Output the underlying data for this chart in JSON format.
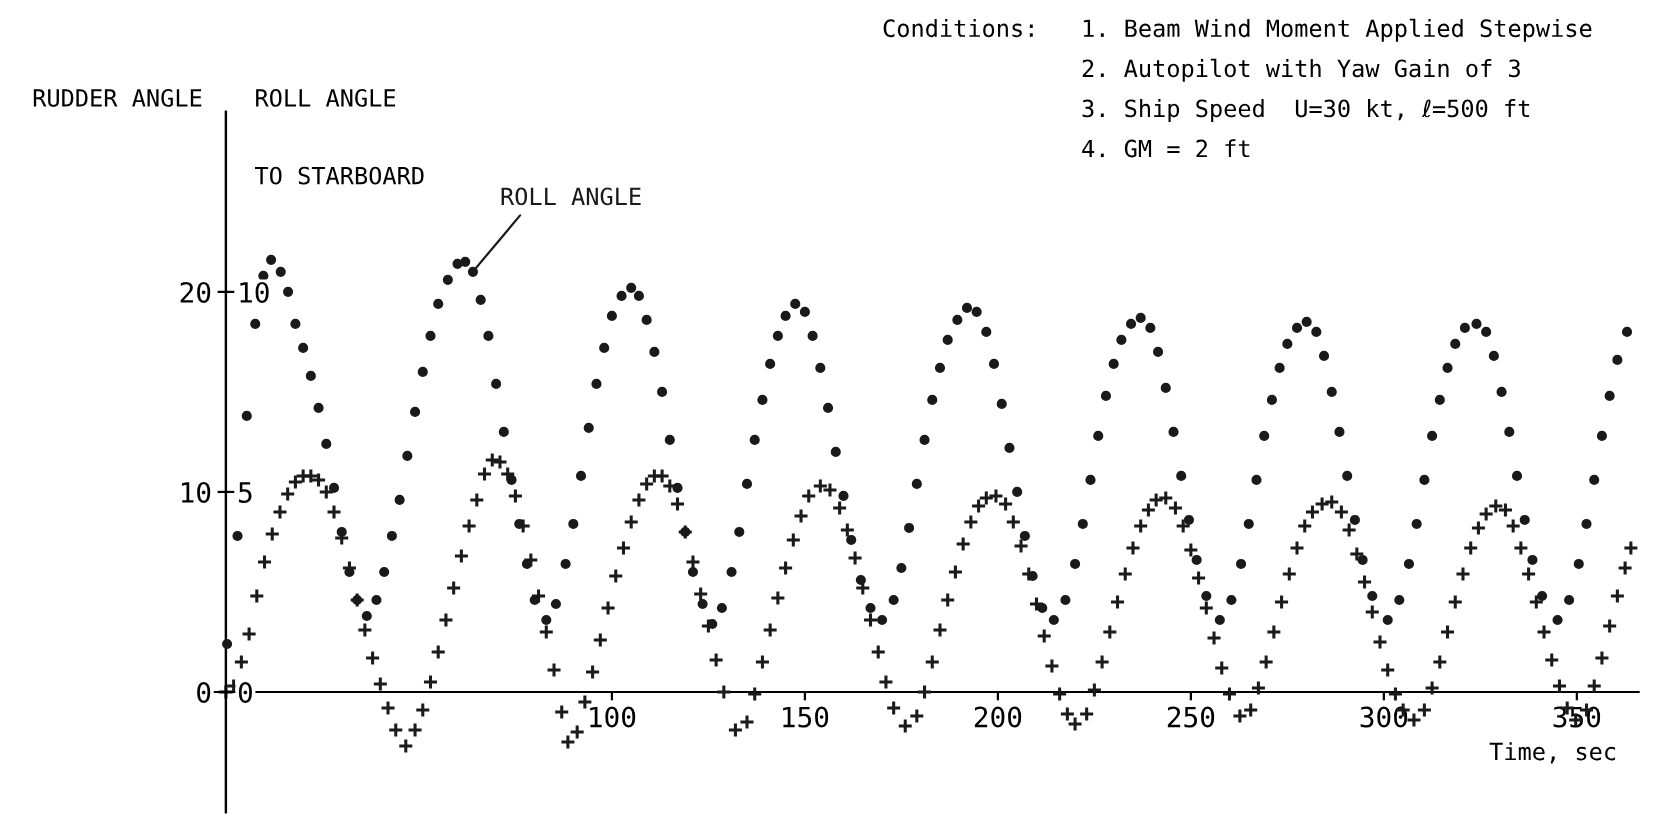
{
  "chart_data": {
    "type": "scatter",
    "annotations": [
      "Conditions:",
      "1. Beam Wind Moment Applied Stepwise",
      "2. Autopilot with Yaw Gain of 3",
      "3. Ship Speed  U=30 kt, ℓ=500 ft",
      "4. GM = 2 ft",
      "TO STARBOARD"
    ],
    "xlabel": "Time, sec",
    "ylabel": "RUDDER ANGLE",
    "y2label": "ROLL ANGLE",
    "xlim": [
      -6,
      366
    ],
    "xticks": [
      100,
      150,
      200,
      250,
      300,
      350
    ],
    "ylim": [
      -6,
      29
    ],
    "yticks": [
      0,
      10,
      20
    ],
    "y2lim": [
      -3,
      14.5
    ],
    "y2ticks": [
      0,
      5,
      10
    ],
    "series": [
      {
        "name": "ROLL ANGLE",
        "axis": "y2",
        "marker": "circle",
        "color": "#1a1a1a",
        "x": [
          0.3,
          3,
          5.4,
          7.6,
          9.7,
          11.7,
          14.2,
          16.1,
          18,
          20,
          22,
          24,
          26,
          28,
          30,
          32,
          34,
          36.5,
          39,
          41,
          43,
          45,
          47,
          49,
          51,
          53,
          55,
          57.5,
          60,
          62,
          64,
          66,
          68,
          70,
          72,
          74,
          76,
          78,
          80,
          83,
          85.5,
          88,
          90,
          92,
          94,
          96,
          98,
          100,
          102.5,
          105,
          107,
          109,
          111,
          113,
          115,
          117,
          119,
          121,
          123.5,
          126,
          128.5,
          131,
          133,
          135,
          137,
          139,
          141,
          143,
          145,
          147.5,
          150,
          152,
          154,
          156,
          158,
          160,
          162,
          164.5,
          167,
          170,
          173,
          175,
          177,
          179,
          181,
          183,
          185,
          187,
          189.5,
          192,
          194.5,
          197,
          199,
          201,
          203,
          205,
          207,
          209,
          211.5,
          214.5,
          217.5,
          220,
          222,
          224,
          226,
          228,
          230,
          232,
          234.5,
          237,
          239.5,
          241.5,
          243.5,
          245.5,
          247.5,
          249.5,
          251.5,
          254,
          257.5,
          260.5,
          263,
          265,
          267,
          269,
          271,
          273,
          275,
          277.5,
          280,
          282.5,
          284.5,
          286.5,
          288.5,
          290.5,
          292.5,
          294.5,
          297,
          301,
          304,
          306.5,
          308.5,
          310.5,
          312.5,
          314.5,
          316.5,
          318.5,
          321,
          324,
          326.5,
          328.5,
          330.5,
          332.5,
          334.5,
          336.5,
          338.5,
          341,
          345,
          348,
          350.5,
          352.5,
          354.5,
          356.5,
          358.5,
          360.5,
          363
        ],
        "values": [
          1.2,
          3.9,
          6.9,
          9.2,
          10.4,
          10.8,
          10.5,
          10.0,
          9.2,
          8.6,
          7.9,
          7.1,
          6.2,
          5.1,
          4.0,
          3.0,
          2.3,
          1.9,
          2.3,
          3.0,
          3.9,
          4.8,
          5.9,
          7.0,
          8.0,
          8.9,
          9.7,
          10.3,
          10.7,
          10.75,
          10.5,
          9.8,
          8.9,
          7.7,
          6.5,
          5.3,
          4.2,
          3.2,
          2.3,
          1.8,
          2.2,
          3.2,
          4.2,
          5.4,
          6.6,
          7.7,
          8.6,
          9.4,
          9.9,
          10.1,
          9.9,
          9.3,
          8.5,
          7.5,
          6.3,
          5.1,
          4.0,
          3.0,
          2.2,
          1.7,
          2.1,
          3.0,
          4.0,
          5.2,
          6.3,
          7.3,
          8.2,
          8.9,
          9.4,
          9.7,
          9.5,
          8.9,
          8.1,
          7.1,
          6.0,
          4.9,
          3.8,
          2.8,
          2.1,
          1.8,
          2.3,
          3.1,
          4.1,
          5.2,
          6.3,
          7.3,
          8.1,
          8.8,
          9.3,
          9.6,
          9.5,
          9.0,
          8.2,
          7.2,
          6.1,
          5.0,
          3.9,
          2.9,
          2.1,
          1.8,
          2.3,
          3.2,
          4.2,
          5.3,
          6.4,
          7.4,
          8.2,
          8.8,
          9.2,
          9.35,
          9.1,
          8.5,
          7.6,
          6.5,
          5.4,
          4.3,
          3.3,
          2.4,
          1.8,
          2.3,
          3.2,
          4.2,
          5.3,
          6.4,
          7.3,
          8.1,
          8.7,
          9.1,
          9.25,
          9.0,
          8.4,
          7.5,
          6.5,
          5.4,
          4.3,
          3.3,
          2.4,
          1.8,
          2.3,
          3.2,
          4.2,
          5.3,
          6.4,
          7.3,
          8.1,
          8.7,
          9.1,
          9.2,
          9.0,
          8.4,
          7.5,
          6.5,
          5.4,
          4.3,
          3.3,
          2.4,
          1.8,
          2.3,
          3.2,
          4.2,
          5.3,
          6.4,
          7.4,
          8.3,
          9.0
        ]
      },
      {
        "marker": "cross",
        "color": "#1a1a1a",
        "x": [
          0,
          2,
          4,
          6,
          8,
          10,
          12,
          14,
          16,
          18,
          20,
          22,
          24,
          26,
          28,
          30,
          32,
          34,
          36,
          38,
          40,
          42,
          44,
          46.6,
          49,
          51,
          53,
          55,
          57,
          59,
          61,
          63,
          65,
          67,
          69,
          71,
          73,
          75,
          77,
          79,
          81,
          83,
          85,
          87,
          88.6,
          91,
          93,
          95,
          97,
          99,
          101,
          103,
          105,
          107,
          109,
          111,
          113,
          115,
          117,
          119,
          121,
          123,
          125,
          127,
          129,
          132,
          135,
          137,
          139,
          141,
          143,
          145,
          147,
          149,
          151,
          154,
          156.5,
          159,
          161,
          163,
          165,
          167,
          169,
          171,
          173,
          176,
          179,
          181,
          183,
          185,
          187,
          189,
          191,
          193,
          195,
          197,
          199.5,
          202,
          204,
          206,
          208,
          210,
          212,
          214,
          216,
          218,
          220,
          223,
          225,
          227,
          229,
          231,
          233,
          235,
          237,
          239,
          241,
          243.5,
          246,
          248,
          250,
          252,
          254,
          256,
          258,
          260,
          262.7,
          265.5,
          267.5,
          269.5,
          271.5,
          273.5,
          275.5,
          277.5,
          279.5,
          281.5,
          284,
          286.5,
          289,
          291,
          293,
          295,
          297,
          299,
          301,
          303,
          305,
          307.8,
          310.5,
          312.5,
          314.5,
          316.5,
          318.5,
          320.5,
          322.5,
          324.5,
          326.5,
          329,
          331.5,
          333.5,
          335.5,
          337.5,
          339.5,
          341.5,
          343.5,
          345.5,
          347.5,
          349.7,
          352.5,
          354.5,
          356.5,
          358.5,
          360.5,
          362.5,
          364
        ],
        "values": [
          0,
          0.3,
          1.5,
          2.9,
          4.8,
          6.5,
          7.9,
          9.0,
          9.9,
          10.5,
          10.8,
          10.8,
          10.6,
          10.0,
          9.0,
          7.7,
          6.2,
          4.6,
          3.1,
          1.7,
          0.4,
          -0.8,
          -1.9,
          -2.7,
          -1.9,
          -0.9,
          0.5,
          2.0,
          3.6,
          5.2,
          6.8,
          8.3,
          9.6,
          10.9,
          11.6,
          11.5,
          10.9,
          9.8,
          8.3,
          6.6,
          4.8,
          3.0,
          1.1,
          -1.0,
          -2.5,
          -2.0,
          -0.5,
          1.0,
          2.6,
          4.2,
          5.8,
          7.2,
          8.5,
          9.6,
          10.4,
          10.8,
          10.8,
          10.3,
          9.4,
          8.0,
          6.5,
          4.9,
          3.3,
          1.6,
          0.0,
          -1.9,
          -1.5,
          -0.1,
          1.5,
          3.1,
          4.7,
          6.2,
          7.6,
          8.8,
          9.8,
          10.3,
          10.1,
          9.2,
          8.1,
          6.7,
          5.2,
          3.6,
          2.0,
          0.5,
          -0.8,
          -1.7,
          -1.2,
          0.0,
          1.5,
          3.1,
          4.6,
          6.0,
          7.4,
          8.5,
          9.3,
          9.7,
          9.8,
          9.4,
          8.5,
          7.3,
          5.9,
          4.4,
          2.8,
          1.3,
          -0.1,
          -1.1,
          -1.6,
          -1.1,
          0.1,
          1.5,
          3.0,
          4.5,
          5.9,
          7.2,
          8.3,
          9.1,
          9.6,
          9.7,
          9.2,
          8.3,
          7.1,
          5.7,
          4.2,
          2.7,
          1.2,
          -0.1,
          -1.2,
          -0.9,
          0.2,
          1.5,
          3.0,
          4.5,
          5.9,
          7.2,
          8.3,
          9.0,
          9.4,
          9.5,
          9.0,
          8.1,
          6.9,
          5.5,
          4.0,
          2.5,
          1.1,
          -0.1,
          -0.9,
          -1.4,
          -0.9,
          0.2,
          1.5,
          3.0,
          4.5,
          5.9,
          7.2,
          8.2,
          8.9,
          9.3,
          9.1,
          8.3,
          7.2,
          5.9,
          4.5,
          3.0,
          1.6,
          0.3,
          -0.8,
          -1.4,
          -0.9,
          0.3,
          1.7,
          3.3,
          4.8,
          6.2,
          7.2
        ]
      }
    ]
  }
}
